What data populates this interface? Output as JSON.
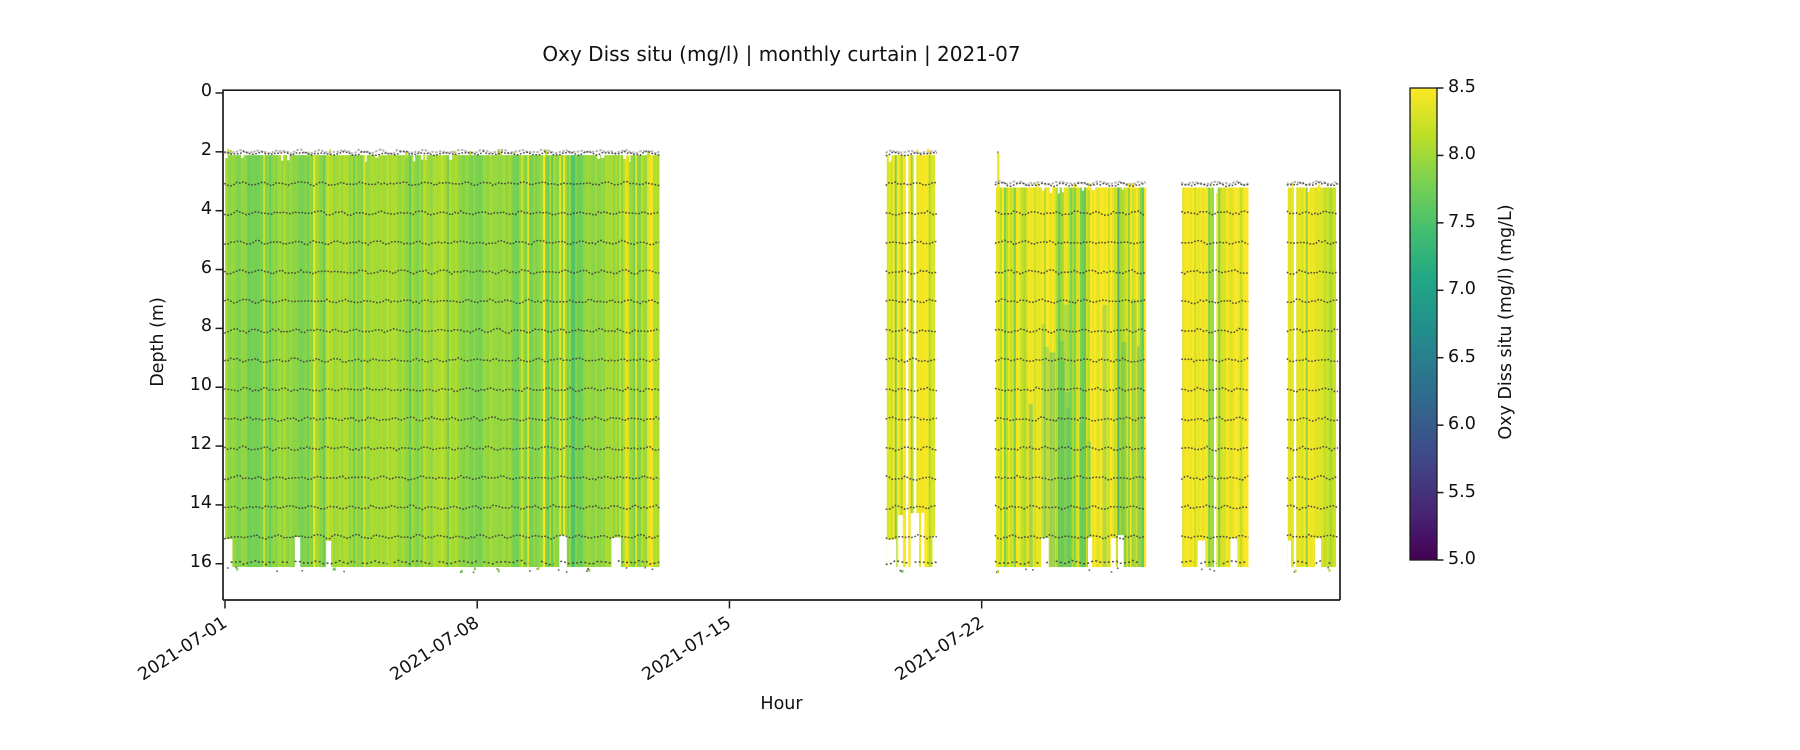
{
  "title": "Oxy Diss situ (mg/l) | monthly curtain | 2021-07",
  "xlabel": "Hour",
  "ylabel": "Depth (m)",
  "colorbar_label": "Oxy Diss situ (mg/l) (mg/L)",
  "chart_data": {
    "type": "heatmap",
    "subtype": "time-depth curtain with per-depth sensor dot chains",
    "title": "Oxy Diss situ (mg/l) | monthly curtain | 2021-07",
    "xlabel": "Hour",
    "ylabel": "Depth (m)",
    "x_ticks": [
      {
        "day": 0,
        "label": "2021-07-01"
      },
      {
        "day": 7,
        "label": "2021-07-08"
      },
      {
        "day": 14,
        "label": "2021-07-15"
      },
      {
        "day": 21,
        "label": "2021-07-22"
      }
    ],
    "x_range_days": [
      0,
      31
    ],
    "y_ticks": [
      0,
      2,
      4,
      6,
      8,
      10,
      12,
      14,
      16
    ],
    "y_range_depth": [
      0,
      17.3
    ],
    "depth_extent_of_data": [
      2.0,
      16.2
    ],
    "sensor_depths_m": [
      2,
      3,
      4,
      5,
      6,
      7,
      8,
      9,
      10,
      11,
      12,
      13,
      14,
      15,
      16
    ],
    "value_range": [
      5.0,
      8.5
    ],
    "colorbar": {
      "label": "Oxy Diss situ (mg/l) (mg/L)",
      "ticks": [
        8.5,
        8.0,
        7.5,
        7.0,
        6.5,
        6.0,
        5.5,
        5.0
      ],
      "colormap": "viridis",
      "stops": [
        [
          0.0,
          "#440154"
        ],
        [
          0.1,
          "#482475"
        ],
        [
          0.2,
          "#414487"
        ],
        [
          0.3,
          "#355f8d"
        ],
        [
          0.4,
          "#2a788e"
        ],
        [
          0.5,
          "#21918c"
        ],
        [
          0.6,
          "#22a884"
        ],
        [
          0.7,
          "#44bf70"
        ],
        [
          0.8,
          "#7ad151"
        ],
        [
          0.9,
          "#bddf26"
        ],
        [
          1.0,
          "#fde725"
        ]
      ]
    },
    "segments": [
      {
        "start": "2021-07-01",
        "end": "2021-07-13",
        "d0": 0.06,
        "d1": 12.05,
        "top_depth": 2.18,
        "bottom_depth": 16.18,
        "chain_top": 2.12,
        "value_mean": 7.95,
        "value_noise": 0.12,
        "streak_up_prob": 0.045,
        "streak_up_amp": 0.4,
        "streak_down_prob": 0.05,
        "streak_down_amp": 0.25,
        "bottom_gap_prob": 0.14,
        "gap_days": [],
        "right_edge_yellow": true
      },
      {
        "start": "2021-07-19",
        "end": "2021-07-20",
        "d0": 18.42,
        "d1": 19.75,
        "top_depth": 2.18,
        "bottom_depth": 16.18,
        "chain_top": 2.12,
        "value_mean": 8.34,
        "value_noise": 0.09,
        "streak_up_prob": 0.3,
        "streak_up_amp": 0.15,
        "streak_down_prob": 0.15,
        "streak_down_amp": 0.45,
        "bottom_gap_prob": 0.18,
        "gap_days": [
          18.95,
          19.18
        ]
      },
      {
        "start": "2021-07-22",
        "end": "2021-07-26",
        "d0": 21.45,
        "d1": 25.6,
        "top_depth": 3.28,
        "bottom_depth": 16.18,
        "chain_top": 3.18,
        "value_mean": 8.3,
        "value_noise": 0.11,
        "streak_up_prob": 0.3,
        "streak_up_amp": 0.18,
        "streak_down_prob": 0.28,
        "streak_down_amp": 0.5,
        "bottom_gap_prob": 0.18,
        "gap_days": [],
        "top_spike_day": 21.48,
        "green_lower": true
      },
      {
        "start": "2021-07-27",
        "end": "2021-07-29",
        "d0": 26.62,
        "d1": 28.42,
        "top_depth": 3.28,
        "bottom_depth": 16.18,
        "chain_top": 3.18,
        "value_mean": 8.36,
        "value_noise": 0.08,
        "streak_up_prob": 0.25,
        "streak_up_amp": 0.12,
        "streak_down_prob": 0.2,
        "streak_down_amp": 0.4,
        "bottom_gap_prob": 0.15,
        "gap_days": [
          27.5
        ]
      },
      {
        "start": "2021-07-30",
        "end": "2021-07-31",
        "d0": 29.55,
        "d1": 30.88,
        "top_depth": 3.28,
        "bottom_depth": 16.18,
        "chain_top": 3.18,
        "value_mean": 8.38,
        "value_noise": 0.07,
        "streak_up_prob": 0.25,
        "streak_up_amp": 0.1,
        "streak_down_prob": 0.18,
        "streak_down_amp": 0.38,
        "bottom_gap_prob": 0.14,
        "gap_days": [
          29.72
        ]
      }
    ]
  }
}
